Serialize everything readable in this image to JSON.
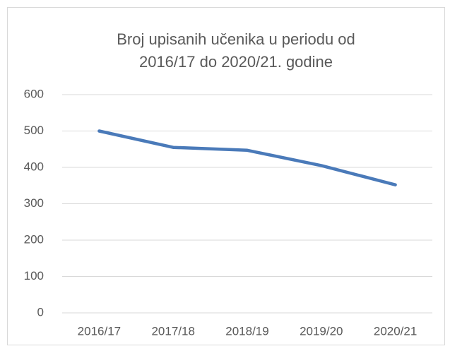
{
  "chart_data": {
    "type": "line",
    "title": [
      "Broj upisanih učenika u periodu od",
      "2016/17 do 2020/21. godine"
    ],
    "categories": [
      "2016/17",
      "2017/18",
      "2018/19",
      "2019/20",
      "2020/21"
    ],
    "series": [
      {
        "name": "Broj upisanih učenika",
        "color": "#4a7ab9",
        "values": [
          500,
          455,
          447,
          405,
          352
        ]
      }
    ],
    "ylim": [
      0,
      600
    ],
    "yticks": [
      0,
      100,
      200,
      300,
      400,
      500,
      600
    ],
    "grid": true
  }
}
